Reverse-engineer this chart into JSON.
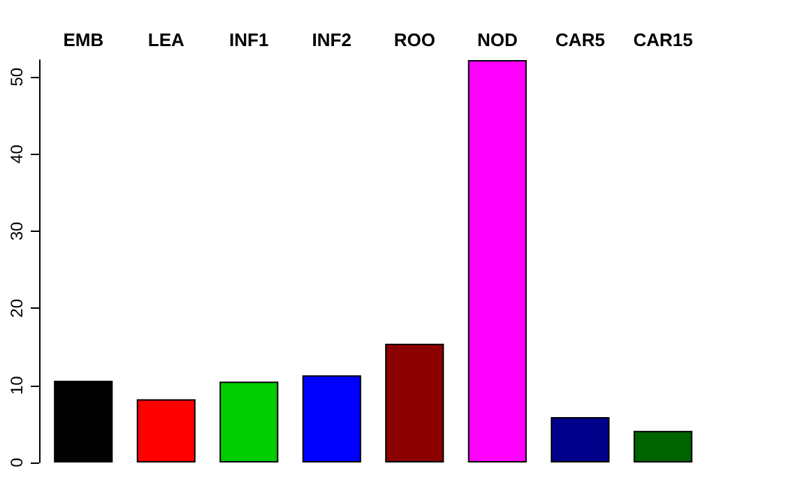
{
  "chart_data": {
    "type": "bar",
    "categories": [
      "EMB",
      "LEA",
      "INF1",
      "INF2",
      "ROO",
      "NOD",
      "CAR5",
      "CAR15"
    ],
    "values": [
      10.6,
      8.2,
      10.5,
      11.3,
      15.4,
      52.2,
      5.9,
      4.1
    ],
    "colors": [
      "#000000",
      "#ff0000",
      "#00cd00",
      "#0000ff",
      "#8b0000",
      "#ff00ff",
      "#00008b",
      "#006400"
    ],
    "ylim": [
      0,
      52.2
    ],
    "yticks": [
      0,
      10,
      20,
      30,
      40,
      50
    ],
    "grid": false
  }
}
